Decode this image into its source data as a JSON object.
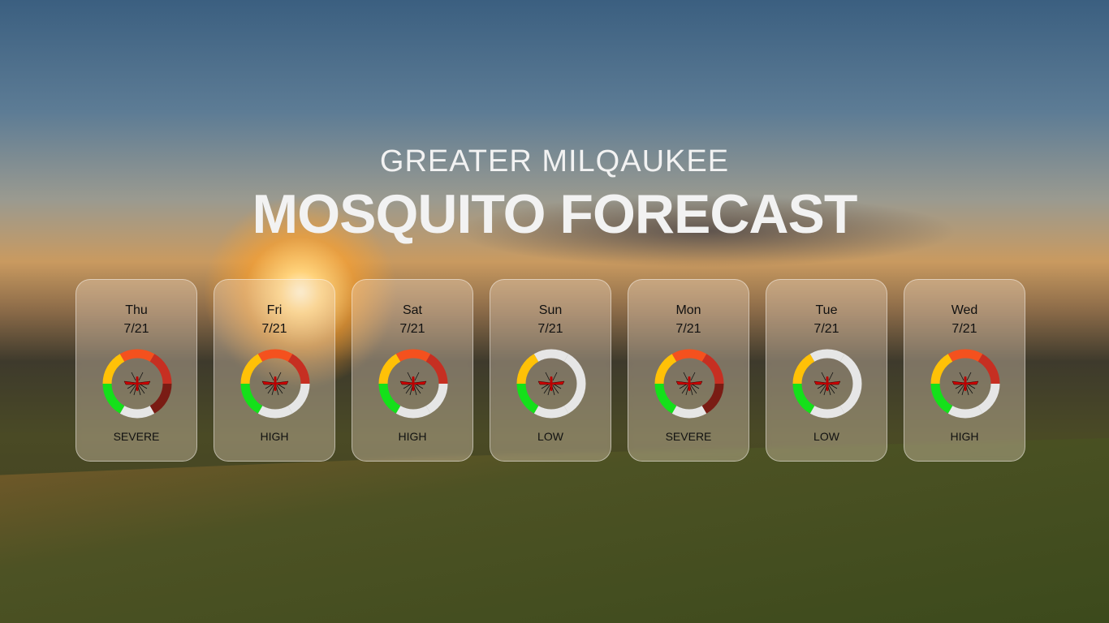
{
  "header": {
    "subtitle": "GREATER MILQAUKEE",
    "title": "MOSQUITO FORECAST"
  },
  "colors": {
    "segments": [
      "#14e01a",
      "#ffc107",
      "#f4511e",
      "#c62f22",
      "#7a1c14"
    ],
    "empty": "#e6e6e6"
  },
  "days": [
    {
      "day": "Thu",
      "date": "7/21",
      "level": "SEVERE",
      "filled": 5
    },
    {
      "day": "Fri",
      "date": "7/21",
      "level": "HIGH",
      "filled": 4
    },
    {
      "day": "Sat",
      "date": "7/21",
      "level": "HIGH",
      "filled": 4
    },
    {
      "day": "Sun",
      "date": "7/21",
      "level": "LOW",
      "filled": 2
    },
    {
      "day": "Mon",
      "date": "7/21",
      "level": "SEVERE",
      "filled": 5
    },
    {
      "day": "Tue",
      "date": "7/21",
      "level": "LOW",
      "filled": 2
    },
    {
      "day": "Wed",
      "date": "7/21",
      "level": "HIGH",
      "filled": 4
    }
  ]
}
